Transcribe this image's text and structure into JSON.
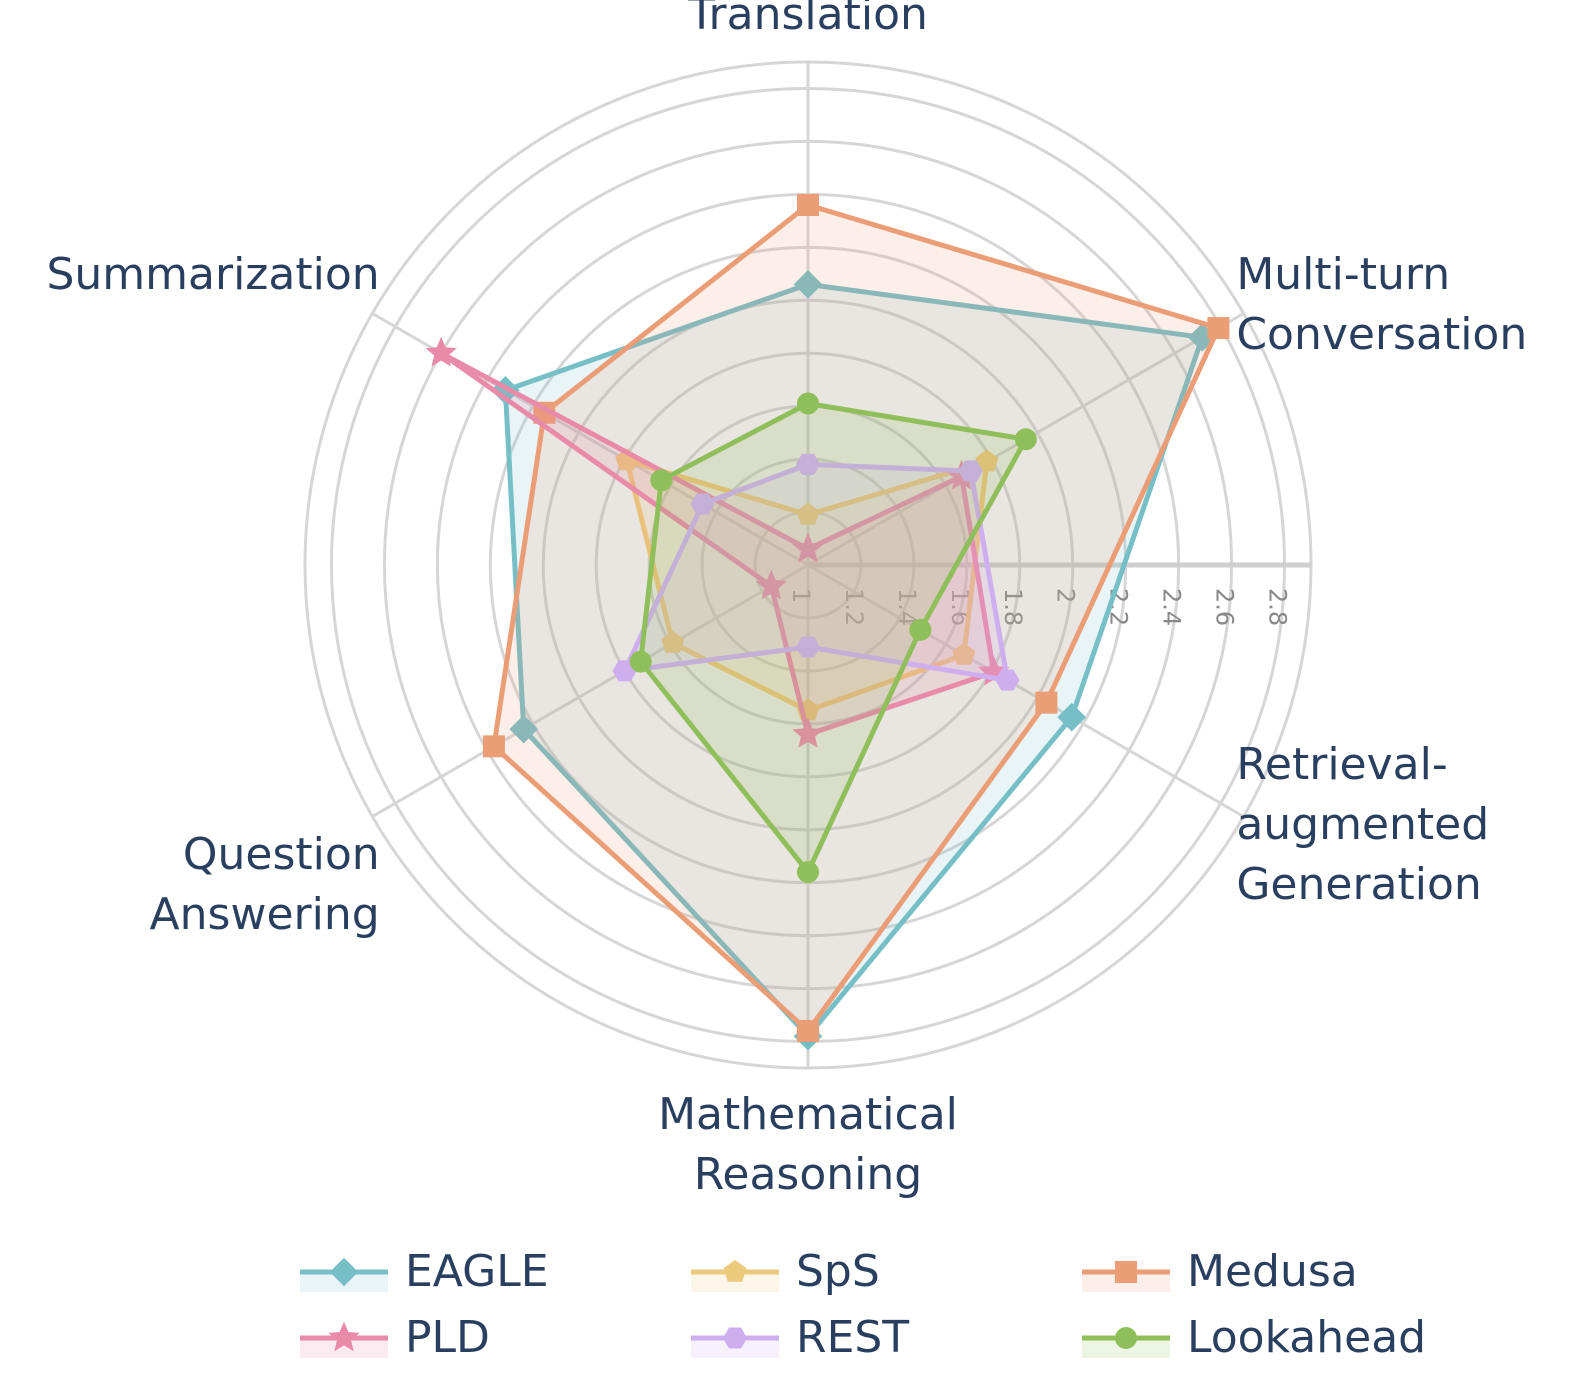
{
  "chart_data": {
    "type": "radar",
    "categories": [
      "Translation",
      "Multi-turn\nConversation",
      "Retrieval-\naugmented\nGeneration",
      "Mathematical\nReasoning",
      "Question\nAnswering",
      "Summarization"
    ],
    "rlim": [
      1,
      2.9
    ],
    "rticks": [
      1,
      1.2,
      1.4,
      1.6,
      1.8,
      2,
      2.2,
      2.4,
      2.6,
      2.8
    ],
    "grid": true,
    "series": [
      {
        "name": "EAGLE",
        "color": "#76bfc7",
        "marker": "diamond",
        "values": [
          2.06,
          2.72,
          2.15,
          2.78,
          2.24,
          2.32
        ]
      },
      {
        "name": "SpS",
        "color": "#ebca7c",
        "marker": "pentagon",
        "values": [
          1.19,
          1.78,
          1.68,
          1.55,
          1.59,
          1.79
        ]
      },
      {
        "name": "Medusa",
        "color": "#eb9d76",
        "marker": "square",
        "values": [
          2.36,
          2.79,
          2.04,
          2.76,
          2.37,
          2.15
        ]
      },
      {
        "name": "PLD",
        "color": "#e98aa9",
        "marker": "star",
        "values": [
          1.06,
          1.67,
          1.81,
          1.64,
          1.16,
          2.6
        ]
      },
      {
        "name": "REST",
        "color": "#cfaef0",
        "marker": "hexagon",
        "values": [
          1.38,
          1.71,
          1.87,
          1.31,
          1.8,
          1.46
        ]
      },
      {
        "name": "Lookahead",
        "color": "#8fbf5a",
        "marker": "circle",
        "values": [
          1.61,
          1.95,
          1.49,
          2.16,
          1.73,
          1.64
        ]
      }
    ]
  }
}
